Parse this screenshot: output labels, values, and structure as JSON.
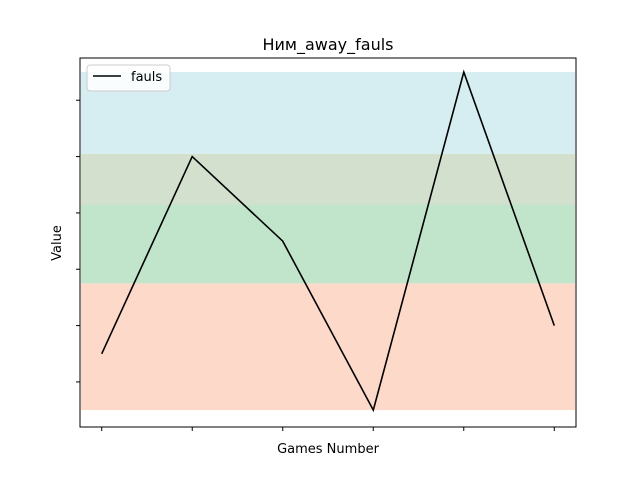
{
  "chart_data": {
    "type": "line",
    "title": "Ним_away_fauls",
    "xlabel": "Games Number",
    "ylabel": "Value",
    "x": [
      1,
      2,
      3,
      4,
      5,
      6
    ],
    "series": [
      {
        "name": "fauls",
        "values": [
          10,
          17,
          14,
          8,
          20,
          11
        ],
        "color": "#000000"
      }
    ],
    "ylim": [
      7.4,
      20.5
    ],
    "xlim": [
      0.76,
      6.24
    ],
    "grid": false,
    "legend": {
      "position": "top-left",
      "label": "fauls"
    },
    "y_ticks": [
      9,
      11,
      13,
      15,
      17,
      19
    ],
    "bands": [
      {
        "from": 8,
        "to": 12.5,
        "color": "#fdd9ca"
      },
      {
        "from": 12.5,
        "to": 15.3,
        "color": "#c0e5cb"
      },
      {
        "from": 15.3,
        "to": 17.1,
        "color": "#d3e0ce"
      },
      {
        "from": 17.1,
        "to": 20,
        "color": "#d6edf1"
      }
    ]
  }
}
